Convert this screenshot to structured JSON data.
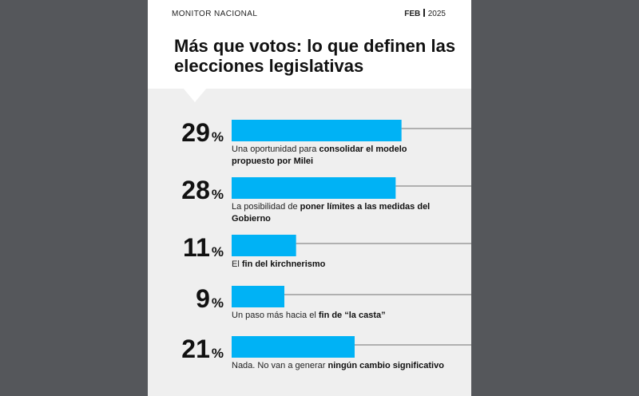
{
  "header": {
    "brand": "MONITOR NACIONAL",
    "month": "FEB",
    "year": "2025",
    "title": "Más que votos: lo que definen las elecciones legislativas"
  },
  "colors": {
    "bar": "#00b2f5",
    "line": "#8a8a8a",
    "page": "#55575b",
    "card": "#efefef"
  },
  "chart_data": {
    "type": "bar",
    "orientation": "horizontal",
    "unit": "%",
    "xlim": [
      0,
      35
    ],
    "categories": [
      "Una oportunidad para consolidar el modelo propuesto por Milei",
      "La posibilidad de poner límites a las medidas del Gobierno",
      "El fin del kirchnerismo",
      "Un paso más hacia el fin de “la casta”",
      "Nada. No van a generar ningún cambio significativo"
    ],
    "values": [
      29,
      28,
      11,
      9,
      21
    ],
    "labels": [
      [
        {
          "t": "Una oportunidad para ",
          "b": false
        },
        {
          "t": "consolidar el modelo propuesto por Milei",
          "b": true
        }
      ],
      [
        {
          "t": "La posibilidad de ",
          "b": false
        },
        {
          "t": "poner límites a las medidas del Gobierno",
          "b": true
        }
      ],
      [
        {
          "t": "El ",
          "b": false
        },
        {
          "t": "fin del kirchnerismo",
          "b": true
        }
      ],
      [
        {
          "t": "Un paso más hacia el ",
          "b": false
        },
        {
          "t": "fin de “la casta”",
          "b": true
        }
      ],
      [
        {
          "t": "Nada. No van a generar ",
          "b": false
        },
        {
          "t": "ningún cambio significativo",
          "b": true
        }
      ]
    ]
  }
}
